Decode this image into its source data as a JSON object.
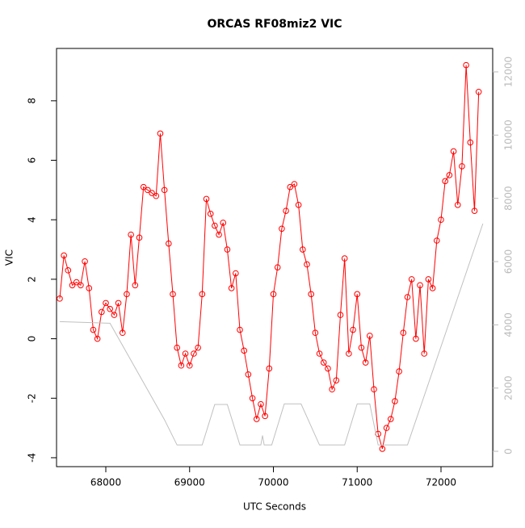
{
  "chart_data": {
    "type": "line",
    "title": "ORCAS RF08miz2 VIC",
    "xlabel": "UTC Seconds",
    "ylabel": "VIC",
    "xlim": [
      67412,
      72617
    ],
    "ylim": [
      -4.3,
      9.76
    ],
    "y2lim": [
      -485,
      12740
    ],
    "xticks": [
      68000,
      69000,
      70000,
      71000,
      72000
    ],
    "yticks": [
      -4,
      -2,
      0,
      2,
      4,
      6,
      8
    ],
    "y2ticks": [
      0,
      2000,
      4000,
      6000,
      8000,
      10000,
      12000
    ],
    "series": [
      {
        "color": "#ff0000",
        "markers": true,
        "x": [
          67450,
          67500,
          67550,
          67600,
          67650,
          67700,
          67750,
          67800,
          67850,
          67900,
          67950,
          68000,
          68050,
          68100,
          68150,
          68200,
          68250,
          68300,
          68350,
          68400,
          68450,
          68500,
          68550,
          68600,
          68650,
          68700,
          68750,
          68800,
          68850,
          68900,
          68950,
          69000,
          69050,
          69100,
          69150,
          69200,
          69250,
          69300,
          69350,
          69400,
          69450,
          69500,
          69550,
          69600,
          69650,
          69700,
          69750,
          69800,
          69850,
          69900,
          69950,
          70000,
          70050,
          70100,
          70150,
          70200,
          70250,
          70300,
          70350,
          70400,
          70450,
          70500,
          70550,
          70600,
          70650,
          70700,
          70750,
          70800,
          70850,
          70900,
          70950,
          71000,
          71050,
          71100,
          71150,
          71200,
          71250,
          71300,
          71350,
          71400,
          71450,
          71500,
          71550,
          71600,
          71650,
          71700,
          71750,
          71800,
          71850,
          71900,
          71950,
          72000,
          72050,
          72100,
          72150,
          72200,
          72250,
          72300,
          72350,
          72400,
          72450
        ],
        "values": [
          1.35,
          2.8,
          2.3,
          1.8,
          1.9,
          1.8,
          2.6,
          1.7,
          0.3,
          0.0,
          0.9,
          1.2,
          1.0,
          0.8,
          1.2,
          0.2,
          1.5,
          3.5,
          1.8,
          3.4,
          5.1,
          5.0,
          4.9,
          4.8,
          6.9,
          5.0,
          3.2,
          1.5,
          -0.3,
          -0.9,
          -0.5,
          -0.9,
          -0.5,
          -0.3,
          1.5,
          4.7,
          4.2,
          3.8,
          3.5,
          3.9,
          3.0,
          1.7,
          2.2,
          0.3,
          -0.4,
          -1.2,
          -2.0,
          -2.7,
          -2.2,
          -2.6,
          -1.0,
          1.5,
          2.4,
          3.7,
          4.3,
          5.1,
          5.2,
          4.5,
          3.0,
          2.5,
          1.5,
          0.2,
          -0.5,
          -0.8,
          -1.0,
          -1.7,
          -1.4,
          0.8,
          2.7,
          -0.5,
          0.3,
          1.5,
          -0.3,
          -0.8,
          0.1,
          -1.7,
          -3.2,
          -3.7,
          -3.0,
          -2.7,
          -2.1,
          -1.1,
          0.2,
          1.4,
          2.0,
          0.0,
          1.8,
          -0.5,
          2.0,
          1.7,
          3.3,
          4.0,
          5.3,
          5.5,
          6.3,
          4.5,
          5.8,
          9.2,
          6.6,
          4.3,
          8.3
        ]
      },
      {
        "color": "#c0c0c0",
        "axis": "y2",
        "markers": false,
        "x": [
          67450,
          68050,
          68700,
          68850,
          69150,
          69300,
          69450,
          69600,
          69850,
          69870,
          69890,
          69980,
          70130,
          70330,
          70550,
          70850,
          71000,
          71150,
          71250,
          71600,
          72500
        ],
        "values": [
          4100,
          4050,
          1000,
          200,
          200,
          1480,
          1480,
          200,
          200,
          500,
          200,
          200,
          1500,
          1500,
          200,
          200,
          1500,
          1500,
          200,
          200,
          7200
        ]
      }
    ]
  }
}
